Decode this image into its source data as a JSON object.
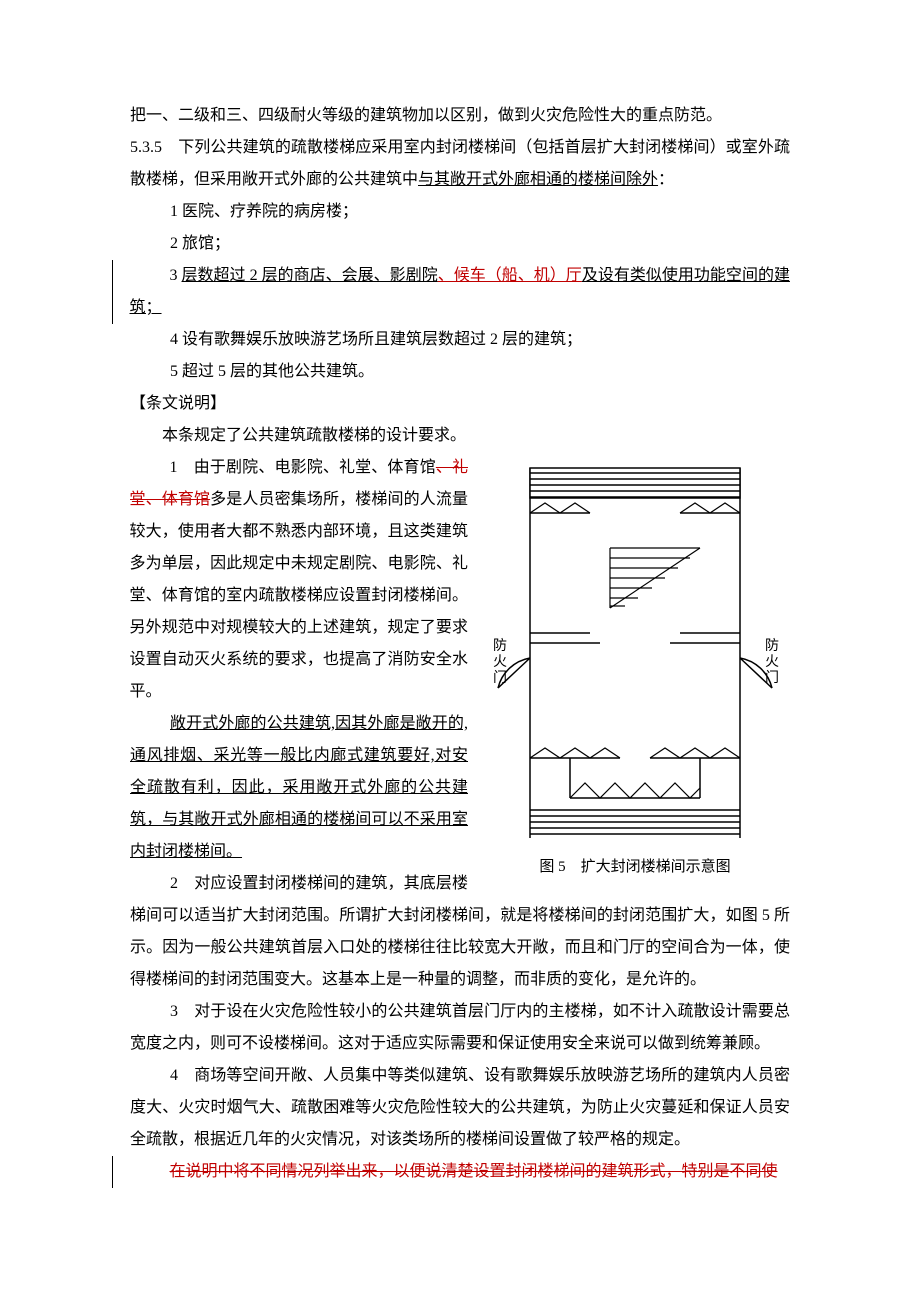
{
  "p1": "把一、二级和三、四级耐火等级的建筑物加以区别，做到火灾危险性大的重点防范。",
  "p2_a": "5.3.5　下列公共建筑的疏散楼梯应采用室内封闭楼梯间（包括首层扩大封闭楼梯间）或室外疏散楼梯，但采用敞开式外廊的公共建筑中",
  "p2_b": "与其敞开式外廊相通的楼梯间除外",
  "p2_c": "：",
  "item1": "1 医院、疗养院的病房楼；",
  "item2": "2 旅馆；",
  "item3_a": "3 ",
  "item3_b": "层数超过 2 层的商店、会展、影剧院",
  "item3_c": "、候车（船、机）厅",
  "item3_d": "及设有类似使用功能空间的建筑；",
  "item4": "4 设有歌舞娱乐放映游艺场所且建筑层数超过 2 层的建筑；",
  "item5": "5 超过 5 层的其他公共建筑。",
  "section_heading": "【条文说明】",
  "p3": "本条规定了公共建筑疏散楼梯的设计要求。",
  "exp1_a": "1　由于剧院、电影院、礼堂、体育馆",
  "exp1_strike": "、礼堂、体育馆",
  "exp1_c": "多是人员密集场所，楼梯间的人流量较大，使用者大都不熟悉内部环境，且这类建筑多为单层，因此规定中未规定剧院、电影院、礼堂、体育馆的室内疏散楼梯应设置封闭楼梯间。另外规范中对规模较大的上述建筑，规定了要求设置自动灭火系统的要求，也提高了消防安全水平。",
  "exp1b_u1": "敞开式外廊的公共建筑,因其外廊是敞开的,通风排烟、采光等一般比内廊式建筑要好,对安全疏散有利，因此，采用敞开式外廊的公共建筑，与其敞开式外廊相通的楼梯间可以不采用室内封闭楼梯间。",
  "exp2": "2　对应设置封闭楼梯间的建筑，其底层楼梯间可以适当扩大封闭范围。所谓扩大封闭楼梯间，就是将楼梯间的封闭范围扩大，如图 5 所示。因为一般公共建筑首层入口处的楼梯往往比较宽大开敞，而且和门厅的空间合为一体，使得楼梯间的封闭范围变大。这基本上是一种量的调整，而非质的变化，是允许的。",
  "exp3": "3　对于设在火灾危险性较小的公共建筑首层门厅内的主楼梯，如不计入疏散设计需要总宽度之内，则可不设楼梯间。这对于适应实际需要和保证使用安全来说可以做到统筹兼顾。",
  "exp4": "4　商场等空间开敞、人员集中等类似建筑、设有歌舞娱乐放映游艺场所的建筑内人员密度大、火灾时烟气大、疏散困难等火灾危险性较大的公共建筑，为防止火灾蔓延和保证人员安全疏散，根据近几年的火灾情况，对该类场所的楼梯间设置做了较严格的规定。",
  "p_del": "在说明中将不同情况列举出来，以便说清楚设置封闭楼梯间的建筑形式，特别是不同使",
  "fig_caption": "图 5　扩大封闭楼梯间示意图",
  "fire_door_left": "防火门",
  "fire_door_right": "防火门",
  "colors": {
    "text": "#000000",
    "revision_red": "#c00000",
    "background": "#ffffff"
  }
}
